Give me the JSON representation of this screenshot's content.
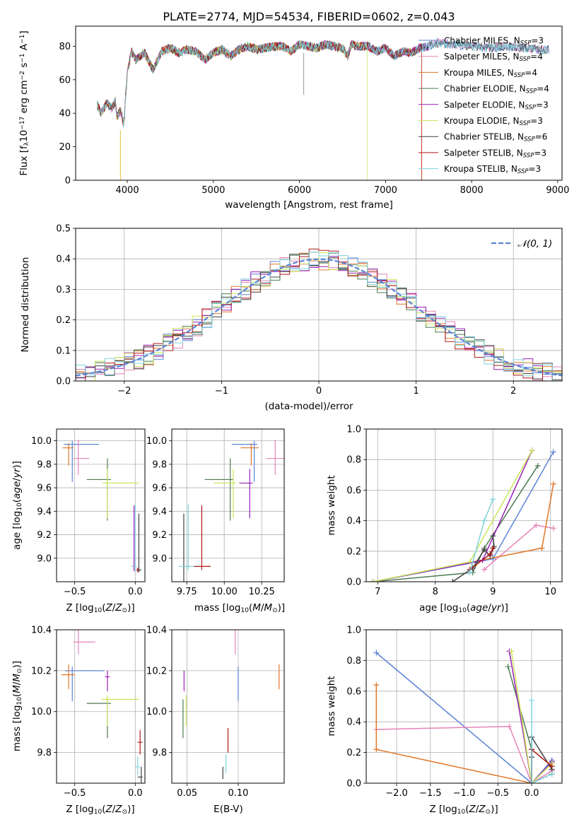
{
  "title": "PLATE=2774, MJD=54534, FIBERID=0602, z=0.043",
  "models": [
    {
      "name": "Chabrier MILES",
      "nssp": "3",
      "color": "#5b84d6"
    },
    {
      "name": "Salpeter MILES",
      "nssp": "4",
      "color": "#e684b8"
    },
    {
      "name": "Kroupa MILES",
      "nssp": "4",
      "color": "#e0782a"
    },
    {
      "name": "Chabrier ELODIE",
      "nssp": "4",
      "color": "#4d7a52"
    },
    {
      "name": "Salpeter ELODIE",
      "nssp": "3",
      "color": "#9b1fb8"
    },
    {
      "name": "Kroupa ELODIE",
      "nssp": "3",
      "color": "#c9e65a"
    },
    {
      "name": "Chabrier STELIB",
      "nssp": "6",
      "color": "#404040"
    },
    {
      "name": "Salpeter STELIB",
      "nssp": "3",
      "color": "#b01818"
    },
    {
      "name": "Kroupa STELIB",
      "nssp": "3",
      "color": "#7fd3dd"
    }
  ],
  "chart_data": [
    {
      "panel": "spectrum",
      "type": "line",
      "xlabel": "wavelength [Angstrom, rest frame]",
      "ylabel": "Flux [f_λ 10^-17 erg cm^-2 s^-1 A^-1]",
      "xlim": [
        3400,
        9050
      ],
      "ylim": [
        0,
        92
      ],
      "xticks": [
        4000,
        5000,
        6000,
        7000,
        8000,
        9000
      ],
      "yticks": [
        0,
        20,
        40,
        60,
        80
      ],
      "model_fit_ranges": [
        [
          3650,
          8900
        ],
        [
          3650,
          8900
        ],
        [
          3650,
          7420
        ],
        [
          3650,
          7500
        ],
        [
          3650,
          7500
        ],
        [
          3650,
          6790
        ],
        [
          3650,
          8900
        ],
        [
          3650,
          7420
        ],
        [
          3650,
          8900
        ]
      ],
      "continuum": [
        [
          3650,
          45
        ],
        [
          3700,
          40
        ],
        [
          3760,
          46
        ],
        [
          3820,
          43
        ],
        [
          3860,
          47
        ],
        [
          3880,
          38
        ],
        [
          3920,
          42
        ],
        [
          3960,
          33
        ],
        [
          4000,
          65
        ],
        [
          4050,
          77
        ],
        [
          4100,
          72
        ],
        [
          4200,
          76
        ],
        [
          4300,
          66
        ],
        [
          4400,
          77
        ],
        [
          4500,
          79
        ],
        [
          4600,
          76
        ],
        [
          4700,
          78
        ],
        [
          4800,
          77
        ],
        [
          4900,
          72
        ],
        [
          5000,
          76
        ],
        [
          5100,
          78
        ],
        [
          5200,
          74
        ],
        [
          5300,
          78
        ],
        [
          5400,
          80
        ],
        [
          5500,
          78
        ],
        [
          5600,
          79
        ],
        [
          5700,
          80
        ],
        [
          5800,
          80
        ],
        [
          5900,
          77
        ],
        [
          6000,
          81
        ],
        [
          6100,
          80
        ],
        [
          6200,
          79
        ],
        [
          6300,
          81
        ],
        [
          6400,
          80
        ],
        [
          6500,
          79
        ],
        [
          6560,
          74
        ],
        [
          6600,
          81
        ],
        [
          6700,
          80
        ],
        [
          6800,
          80
        ],
        [
          6900,
          77
        ],
        [
          7000,
          79
        ],
        [
          7100,
          74
        ],
        [
          7200,
          77
        ],
        [
          7300,
          76
        ],
        [
          7400,
          79
        ],
        [
          7500,
          80
        ],
        [
          7600,
          82
        ],
        [
          7800,
          81
        ],
        [
          8000,
          80
        ],
        [
          8200,
          79
        ],
        [
          8400,
          80
        ],
        [
          8600,
          79
        ],
        [
          8800,
          78
        ],
        [
          8900,
          78
        ]
      ]
    },
    {
      "panel": "residual-histogram",
      "type": "line",
      "xlabel": "(data-model)/error",
      "ylabel": "Normed distribution",
      "xlim": [
        -2.5,
        2.5
      ],
      "ylim": [
        0,
        0.5
      ],
      "xticks": [
        -2,
        -1,
        0,
        1,
        2
      ],
      "yticks": [
        0.0,
        0.1,
        0.2,
        0.3,
        0.4,
        0.5
      ],
      "legend": "N(0,1)",
      "legend_position": "top-right",
      "bin_width": 0.1,
      "reference": "gaussian mean 0 sigma 1"
    },
    {
      "panel": "age-vs-Z",
      "type": "scatter",
      "xlabel": "Z [log10(Z/Z⊙)]",
      "ylabel": "age  [log10(age/yr)]",
      "xlim": [
        -0.65,
        0.08
      ],
      "ylim": [
        8.8,
        10.1
      ],
      "xticks": [
        -0.5,
        0.0
      ],
      "yticks": [
        9.0,
        9.2,
        9.4,
        9.6,
        9.8,
        10.0
      ],
      "points": [
        {
          "x": -0.52,
          "y": 9.97,
          "xerr": [
            0.07,
            0.22
          ],
          "yerr": [
            0.32,
            0.03
          ]
        },
        {
          "x": -0.47,
          "y": 9.85,
          "xerr": [
            0.04,
            0.09
          ],
          "yerr": [
            0.14,
            0.16
          ]
        },
        {
          "x": -0.55,
          "y": 9.94,
          "xerr": [
            0.05,
            0.04
          ],
          "yerr": [
            0.15,
            0.04
          ]
        },
        {
          "x": -0.23,
          "y": 9.67,
          "xerr": [
            0.17,
            0.03
          ],
          "yerr": [
            0.35,
            0.18
          ]
        },
        {
          "x": -0.01,
          "y": 8.93,
          "xerr": [
            0.02,
            0.02
          ],
          "yerr": [
            0.04,
            0.52
          ]
        },
        {
          "x": -0.23,
          "y": 9.64,
          "xerr": [
            0.04,
            0.26
          ],
          "yerr": [
            0.3,
            0.12
          ]
        },
        {
          "x": 0.03,
          "y": 8.9,
          "xerr": [
            0.02,
            0.02
          ],
          "yerr": [
            0.02,
            0.48
          ]
        },
        {
          "x": 0.02,
          "y": 8.9,
          "xerr": [
            0.01,
            0.01
          ],
          "yerr": [
            0.02,
            0.02
          ]
        },
        {
          "x": 0.0,
          "y": 8.93,
          "xerr": [
            0.03,
            0.01
          ],
          "yerr": [
            0.04,
            0.53
          ]
        }
      ]
    },
    {
      "panel": "age-vs-mass",
      "type": "scatter",
      "xlabel": "mass [log10(M/M⊙)]",
      "ylabel": "",
      "xlim": [
        9.65,
        10.4
      ],
      "ylim": [
        8.8,
        10.1
      ],
      "xticks": [
        9.75,
        10.0,
        10.25
      ],
      "yticks": [
        9.0,
        9.2,
        9.4,
        9.6,
        9.8,
        10.0
      ],
      "points": [
        {
          "x": 10.2,
          "y": 9.97,
          "xerr": [
            0.15,
            0.02
          ],
          "yerr": [
            0.32,
            0.03
          ]
        },
        {
          "x": 10.34,
          "y": 9.85,
          "xerr": [
            0.06,
            0.07
          ],
          "yerr": [
            0.14,
            0.16
          ]
        },
        {
          "x": 10.18,
          "y": 9.94,
          "xerr": [
            0.07,
            0.05
          ],
          "yerr": [
            0.15,
            0.04
          ]
        },
        {
          "x": 10.04,
          "y": 9.67,
          "xerr": [
            0.17,
            0.02
          ],
          "yerr": [
            0.35,
            0.18
          ]
        },
        {
          "x": 10.17,
          "y": 9.64,
          "xerr": [
            0.07,
            0.02
          ],
          "yerr": [
            0.3,
            0.12
          ]
        },
        {
          "x": 10.06,
          "y": 9.64,
          "xerr": [
            0.13,
            0.02
          ],
          "yerr": [
            0.3,
            0.12
          ]
        },
        {
          "x": 9.73,
          "y": 9.0,
          "xerr": [
            0.0,
            0.0
          ],
          "yerr": [
            0.2,
            0.38
          ]
        },
        {
          "x": 9.85,
          "y": 8.93,
          "xerr": [
            0.06,
            0.06
          ],
          "yerr": [
            0.03,
            0.52
          ]
        },
        {
          "x": 9.76,
          "y": 8.93,
          "xerr": [
            0.06,
            0.04
          ],
          "yerr": [
            0.03,
            0.53
          ]
        }
      ]
    },
    {
      "panel": "mass-weight-vs-age",
      "type": "line",
      "xlabel": "age  [log10(age/yr)]",
      "ylabel": "mass weight",
      "xlim": [
        6.8,
        10.2
      ],
      "ylim": [
        0.0,
        1.0
      ],
      "xticks": [
        7,
        8,
        9,
        10
      ],
      "yticks": [
        0.0,
        0.2,
        0.4,
        0.6,
        0.8,
        1.0
      ],
      "series": [
        {
          "x": [
            6.92,
            9.0,
            10.05
          ],
          "y": [
            0.0,
            0.15,
            0.85
          ]
        },
        {
          "x": [
            8.85,
            9.75,
            10.05
          ],
          "y": [
            0.08,
            0.37,
            0.35
          ]
        },
        {
          "x": [
            6.92,
            9.85,
            10.05
          ],
          "y": [
            0.0,
            0.22,
            0.64
          ]
        },
        {
          "x": [
            6.92,
            8.65,
            8.85,
            9.78
          ],
          "y": [
            0.0,
            0.06,
            0.22,
            0.76
          ]
        },
        {
          "x": [
            6.92,
            8.82,
            9.68
          ],
          "y": [
            0.0,
            0.14,
            0.86
          ]
        },
        {
          "x": [
            6.92,
            8.6,
            9.68
          ],
          "y": [
            0.0,
            0.13,
            0.86
          ]
        },
        {
          "x": [
            8.3,
            8.65,
            8.85,
            8.95,
            9.02,
            9.0
          ],
          "y": [
            0.0,
            0.09,
            0.21,
            0.17,
            0.23,
            0.3
          ]
        },
        {
          "x": [
            8.6,
            8.95,
            9.0
          ],
          "y": [
            0.08,
            0.18,
            0.22
          ]
        },
        {
          "x": [
            8.6,
            8.85,
            9.0
          ],
          "y": [
            0.06,
            0.4,
            0.54
          ]
        }
      ]
    },
    {
      "panel": "mass-vs-Z",
      "type": "scatter",
      "xlabel": "Z [log10(Z/Z⊙)]",
      "ylabel": "mass [log10(M/M⊙)]",
      "xlim": [
        -0.65,
        0.08
      ],
      "ylim": [
        9.65,
        10.4
      ],
      "xticks": [
        -0.5,
        0.0
      ],
      "yticks": [
        9.8,
        10.0,
        10.2,
        10.4
      ],
      "points": [
        {
          "x": -0.52,
          "y": 10.2,
          "xerr": [
            0.06,
            0.26
          ],
          "yerr": [
            0.15,
            0.02
          ]
        },
        {
          "x": -0.47,
          "y": 10.34,
          "xerr": [
            0.04,
            0.14
          ],
          "yerr": [
            0.06,
            0.07
          ]
        },
        {
          "x": -0.55,
          "y": 10.18,
          "xerr": [
            0.06,
            0.05
          ],
          "yerr": [
            0.07,
            0.05
          ]
        },
        {
          "x": -0.23,
          "y": 10.04,
          "xerr": [
            0.17,
            0.03
          ],
          "yerr": [
            0.17,
            0.02
          ]
        },
        {
          "x": -0.23,
          "y": 10.17,
          "xerr": [
            0.02,
            0.02
          ],
          "yerr": [
            0.07,
            0.03
          ]
        },
        {
          "x": -0.23,
          "y": 10.06,
          "xerr": [
            0.05,
            0.26
          ],
          "yerr": [
            0.13,
            0.02
          ]
        },
        {
          "x": 0.05,
          "y": 9.68,
          "xerr": [
            0.03,
            0.01
          ],
          "yerr": [
            0.05,
            0.05
          ]
        },
        {
          "x": 0.04,
          "y": 9.85,
          "xerr": [
            0.02,
            0.02
          ],
          "yerr": [
            0.06,
            0.06
          ]
        },
        {
          "x": 0.02,
          "y": 9.73,
          "xerr": [
            0.02,
            0.02
          ],
          "yerr": [
            0.04,
            0.05
          ]
        }
      ]
    },
    {
      "panel": "mass-vs-ebv",
      "type": "scatter",
      "xlabel": "E(B-V)",
      "ylabel": "",
      "xlim": [
        0.035,
        0.145
      ],
      "ylim": [
        9.65,
        10.4
      ],
      "xticks": [
        0.05,
        0.1
      ],
      "yticks": [
        9.8,
        10.0,
        10.2,
        10.4
      ],
      "points": [
        {
          "x": 0.1,
          "y": 10.2,
          "yerr": [
            0.15,
            0.02
          ]
        },
        {
          "x": 0.097,
          "y": 10.34,
          "yerr": [
            0.06,
            0.07
          ]
        },
        {
          "x": 0.14,
          "y": 10.18,
          "yerr": [
            0.07,
            0.05
          ]
        },
        {
          "x": 0.046,
          "y": 10.04,
          "yerr": [
            0.17,
            0.02
          ]
        },
        {
          "x": 0.047,
          "y": 10.17,
          "yerr": [
            0.07,
            0.03
          ]
        },
        {
          "x": 0.049,
          "y": 10.06,
          "yerr": [
            0.13,
            0.02
          ]
        },
        {
          "x": 0.085,
          "y": 9.7,
          "yerr": [
            0.03,
            0.03
          ]
        },
        {
          "x": 0.09,
          "y": 9.86,
          "yerr": [
            0.06,
            0.06
          ]
        },
        {
          "x": 0.088,
          "y": 9.74,
          "yerr": [
            0.04,
            0.05
          ]
        }
      ]
    },
    {
      "panel": "mass-weight-vs-Z",
      "type": "line",
      "xlabel": "Z [log10(Z/Z⊙)]",
      "ylabel": "mass weight",
      "xlim": [
        -2.45,
        0.45
      ],
      "ylim": [
        0.0,
        1.0
      ],
      "xticks": [
        -2.0,
        -1.5,
        -1.0,
        -0.5,
        0.0
      ],
      "yticks": [
        0.0,
        0.2,
        0.4,
        0.6,
        0.8,
        1.0
      ],
      "series": [
        {
          "x": [
            -2.3,
            0.0,
            0.3
          ],
          "y": [
            0.85,
            0.0,
            0.15
          ]
        },
        {
          "x": [
            -2.3,
            -0.33,
            0.0,
            0.3
          ],
          "y": [
            0.35,
            0.37,
            0.0,
            0.08
          ]
        },
        {
          "x": [
            -2.3,
            -2.3,
            0.0,
            0.3
          ],
          "y": [
            0.64,
            0.22,
            0.0,
            0.13
          ]
        },
        {
          "x": [
            -0.35,
            0.0,
            0.0,
            0.3
          ],
          "y": [
            0.76,
            0.22,
            0.0,
            0.06
          ]
        },
        {
          "x": [
            -0.33,
            0.0,
            0.3
          ],
          "y": [
            0.86,
            0.0,
            0.14
          ]
        },
        {
          "x": [
            -0.3,
            0.0,
            0.3
          ],
          "y": [
            0.86,
            0.0,
            0.13
          ]
        },
        {
          "x": [
            0.0,
            0.0,
            0.0,
            0.3
          ],
          "y": [
            0.0,
            0.17,
            0.3,
            0.09
          ]
        },
        {
          "x": [
            0.0,
            0.0,
            0.3
          ],
          "y": [
            0.0,
            0.22,
            0.11
          ]
        },
        {
          "x": [
            0.0,
            0.0,
            0.3
          ],
          "y": [
            0.54,
            0.0,
            0.06
          ]
        }
      ]
    }
  ]
}
